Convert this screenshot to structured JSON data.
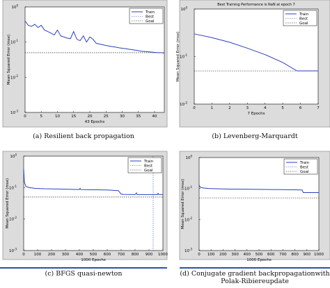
{
  "legend": {
    "train": "Train",
    "best": "Best",
    "goal": "Goal"
  },
  "chart_data": [
    {
      "type": "line",
      "title": "",
      "xlabel": "43 Epochs",
      "ylabel": "Mean Squared Error (mse)",
      "caption": "(a) Resilient back propagation",
      "xlim": [
        0,
        43
      ],
      "ylim": [
        0.001,
        1
      ],
      "yscale": "log",
      "xticks": [
        0,
        5,
        10,
        15,
        20,
        25,
        30,
        35,
        40
      ],
      "yticks": [
        0.001,
        0.01,
        0.1,
        1
      ],
      "goal": 0.05,
      "series": [
        {
          "name": "Train",
          "x": [
            0,
            1,
            2,
            3,
            4,
            5,
            6,
            7,
            8,
            9,
            10,
            11,
            12,
            13,
            14,
            15,
            16,
            17,
            18,
            19,
            20,
            21,
            22,
            23,
            24,
            25,
            26,
            27,
            28,
            29,
            30,
            31,
            32,
            33,
            34,
            35,
            36,
            37,
            38,
            39,
            40,
            41,
            42,
            43
          ],
          "y": [
            0.4,
            0.3,
            0.28,
            0.32,
            0.26,
            0.3,
            0.22,
            0.2,
            0.18,
            0.16,
            0.22,
            0.15,
            0.14,
            0.13,
            0.125,
            0.2,
            0.12,
            0.11,
            0.15,
            0.1,
            0.14,
            0.12,
            0.092,
            0.088,
            0.084,
            0.08,
            0.077,
            0.074,
            0.072,
            0.069,
            0.067,
            0.065,
            0.063,
            0.061,
            0.059,
            0.057,
            0.055,
            0.054,
            0.053,
            0.052,
            0.051,
            0.05,
            0.05,
            0.049
          ]
        }
      ]
    },
    {
      "type": "line",
      "title": "Best Training Performance is NaN at epoch 7",
      "xlabel": "7 Epochs",
      "ylabel": "Mean Squared Error (mse)",
      "caption": "(b) Levenberg-Marquardt",
      "xlim": [
        0,
        7
      ],
      "ylim": [
        0.01,
        1
      ],
      "yscale": "log",
      "xticks": [
        0,
        1,
        2,
        3,
        4,
        5,
        6,
        7
      ],
      "yticks": [
        0.01,
        0.1,
        1
      ],
      "goal": 0.05,
      "series": [
        {
          "name": "Train",
          "x": [
            0,
            1,
            2,
            3,
            4,
            5,
            5.8,
            6,
            7
          ],
          "y": [
            0.3,
            0.25,
            0.2,
            0.15,
            0.11,
            0.075,
            0.05,
            0.05,
            0.05
          ]
        }
      ]
    },
    {
      "type": "line",
      "title": "",
      "xlabel": "1000 Epochs",
      "ylabel": "Mean Squared Error (mse)",
      "caption": "(c) BFGS quasi-newton",
      "xlim": [
        0,
        1000
      ],
      "ylim": [
        0.001,
        1
      ],
      "yscale": "log",
      "xticks": [
        0,
        100,
        200,
        300,
        400,
        500,
        600,
        700,
        800,
        900,
        1000
      ],
      "yticks": [
        0.001,
        0.01,
        0.1,
        1
      ],
      "goal": 0.05,
      "best_epoch": 930,
      "series": [
        {
          "name": "Train",
          "x": [
            0,
            5,
            15,
            40,
            80,
            150,
            250,
            350,
            400,
            405,
            410,
            450,
            520,
            600,
            640,
            680,
            700,
            720,
            800,
            810,
            815,
            850,
            900,
            960,
            965,
            970,
            1000
          ],
          "y": [
            0.4,
            0.15,
            0.11,
            0.1,
            0.095,
            0.092,
            0.09,
            0.088,
            0.087,
            0.095,
            0.087,
            0.086,
            0.085,
            0.084,
            0.082,
            0.08,
            0.062,
            0.061,
            0.06,
            0.068,
            0.06,
            0.06,
            0.06,
            0.06,
            0.066,
            0.06,
            0.06
          ]
        }
      ]
    },
    {
      "type": "line",
      "title": "",
      "xlabel": "1000 Epochs",
      "ylabel": "Mean Squared Error (mse)",
      "caption": "(d) Conjugate gradient backpropagationwith Polak-Ribiereupdate",
      "xlim": [
        0,
        1000
      ],
      "ylim": [
        0.001,
        1
      ],
      "yscale": "log",
      "xticks": [
        0,
        100,
        200,
        300,
        400,
        500,
        600,
        700,
        800,
        900,
        1000
      ],
      "yticks": [
        0.001,
        0.01,
        0.1,
        1
      ],
      "goal": 0.05,
      "series": [
        {
          "name": "Train",
          "x": [
            0,
            10,
            30,
            80,
            150,
            250,
            400,
            500,
            600,
            700,
            800,
            860,
            870,
            1000
          ],
          "y": [
            0.13,
            0.11,
            0.105,
            0.1,
            0.098,
            0.096,
            0.095,
            0.094,
            0.093,
            0.092,
            0.091,
            0.09,
            0.074,
            0.074
          ]
        }
      ]
    }
  ]
}
